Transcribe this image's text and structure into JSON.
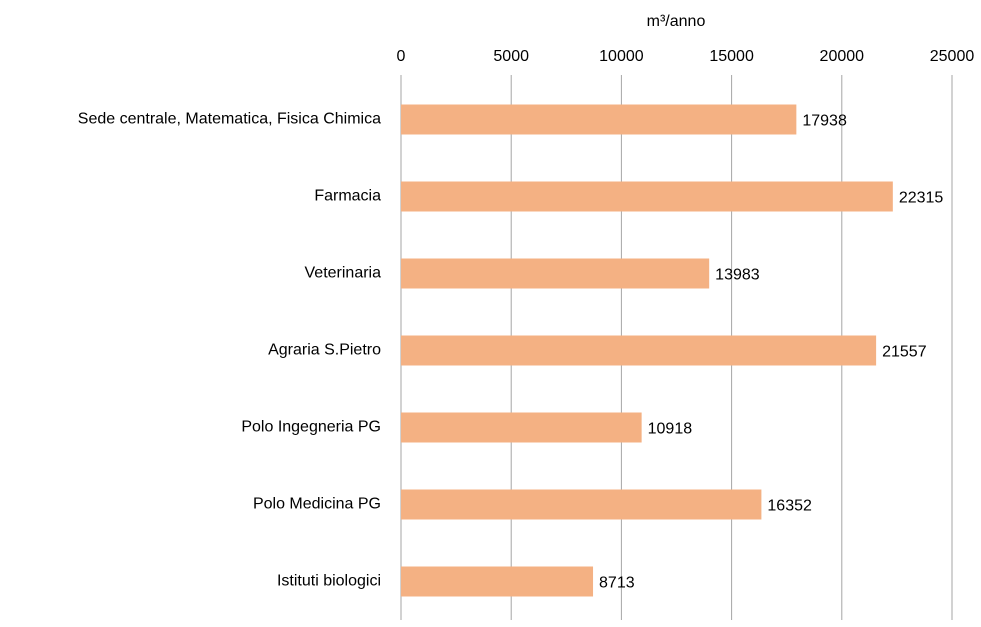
{
  "chart_data": {
    "type": "barh",
    "x_label": "m³/anno",
    "categories": [
      "Sede centrale, Matematica, Fisica Chimica",
      "Farmacia",
      "Veterinaria",
      "Agraria S.Pietro",
      "Polo Ingegneria PG",
      "Polo Medicina PG",
      "Istituti biologici"
    ],
    "values": [
      17938,
      22315,
      13983,
      21557,
      10918,
      16352,
      8713
    ],
    "color": "#f4b183",
    "xlim": [
      0,
      25000
    ],
    "xticks": [
      0,
      5000,
      10000,
      15000,
      20000,
      25000
    ],
    "grid": true
  }
}
